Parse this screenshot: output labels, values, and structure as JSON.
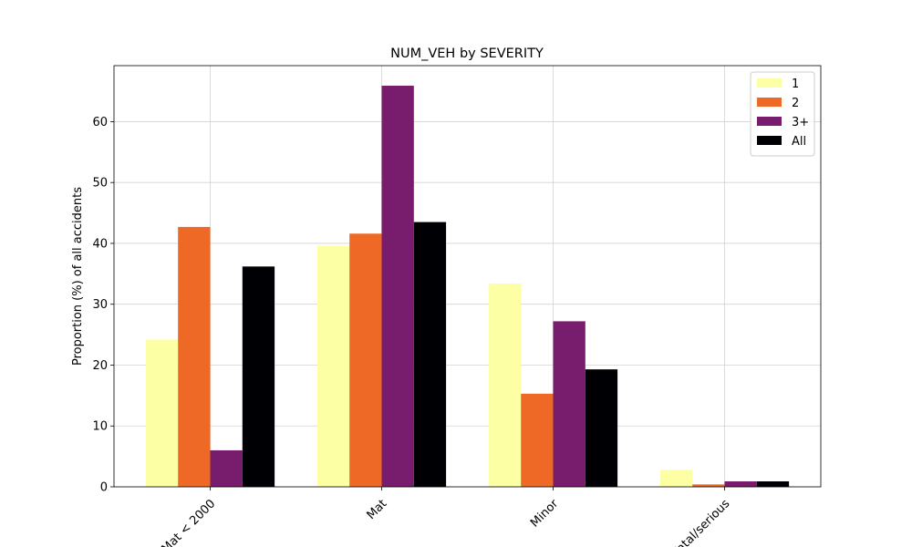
{
  "chart_data": {
    "type": "bar",
    "title": "NUM_VEH by SEVERITY",
    "xlabel": "",
    "ylabel": "Proportion (%) of all accidents",
    "categories": [
      "Mat < 2000",
      "Mat",
      "Minor",
      "Fatal/serious"
    ],
    "ylim": [
      0,
      69.2
    ],
    "yticks": [
      "0",
      "10",
      "20",
      "30",
      "40",
      "50",
      "60"
    ],
    "grid": true,
    "legend_position": "top-right",
    "series": [
      {
        "name": "1",
        "color": "#fcffa4",
        "values": [
          24.2,
          39.6,
          33.4,
          2.8
        ]
      },
      {
        "name": "2",
        "color": "#ed6925",
        "values": [
          42.7,
          41.6,
          15.3,
          0.4
        ]
      },
      {
        "name": "3+",
        "color": "#781c6d",
        "values": [
          6.0,
          65.9,
          27.2,
          0.9
        ]
      },
      {
        "name": "All",
        "color": "#000004",
        "values": [
          36.2,
          43.5,
          19.3,
          0.9
        ]
      }
    ]
  }
}
